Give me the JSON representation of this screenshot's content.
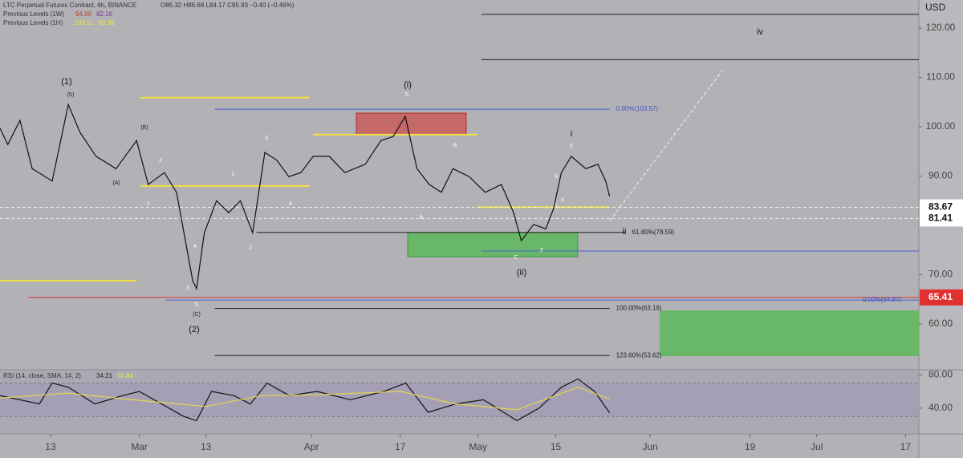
{
  "chart_data": [
    {
      "type": "line",
      "title": "LTC Perpetual Futures Contract, 6h, BINANCE",
      "ohlc": "O86.32 H86.68 L84.17 C85.93 −0.40 (−0.46%)",
      "previous_levels": [
        {
          "name": "Previous Levels (1W)",
          "values": [
            94.96,
            82.16
          ],
          "colors": [
            "#c0392b",
            "#7b2fa8"
          ]
        },
        {
          "name": "Previous Levels (1H)",
          "values": [
            103.51,
            83.86
          ],
          "colors": [
            "#f0e040",
            "#f0e040"
          ]
        }
      ],
      "y_axis_label": "USD",
      "x": [
        2.9,
        4.3,
        6.5,
        8.7,
        12.3,
        15.2,
        17.3,
        20.2,
        23.8,
        27.5,
        29.6,
        32.5,
        34.7,
        37.6,
        38.3,
        39.7,
        41.9,
        44.1,
        46.2,
        48.4,
        50.6,
        52.8,
        54.9,
        57.1,
        59.3,
        62.2,
        65.0,
        68.7,
        71.5,
        73.7,
        75.9,
        78.0,
        80.2,
        82.4,
        84.5,
        87.4,
        90.3,
        93.2,
        95.4,
        96.8,
        99.0,
        101.2,
        102.6,
        104.0,
        105.8,
        108.4,
        110.6,
        112.0,
        112.7
      ],
      "series": [
        {
          "color": "#111111",
          "values": [
            99.7,
            96.4,
            101.3,
            91.5,
            89,
            104.5,
            98.9,
            94,
            91.5,
            97.2,
            88.3,
            90.7,
            86.7,
            68.8,
            67.2,
            78.5,
            85,
            82.6,
            85,
            78.5,
            94.8,
            93.2,
            89.9,
            90.7,
            94,
            94,
            90.7,
            92.4,
            97.2,
            98,
            102.1,
            91.5,
            88.3,
            86.7,
            91.5,
            89.9,
            86.7,
            88.3,
            82.6,
            76.9,
            80.2,
            79.3,
            83.4,
            90.7,
            94,
            91.5,
            92.4,
            89,
            85.93
          ]
        }
      ],
      "xlim": [
        2.9,
        168.4
      ],
      "ylim": [
        50.9,
        125.7
      ],
      "yticks": [
        {
          "value": 60,
          "label": "60.00"
        },
        {
          "value": 70,
          "label": "70.00"
        },
        {
          "value": 90,
          "label": "90.00"
        },
        {
          "value": 100,
          "label": "100.00"
        },
        {
          "value": 110,
          "label": "110.00"
        },
        {
          "value": 120,
          "label": "120.00"
        }
      ],
      "grid": false,
      "levels": [
        {
          "value": 122.8,
          "color": "#222222",
          "from": 89.6,
          "to": 168.4
        },
        {
          "value": 113.6,
          "color": "#222222",
          "from": 89.6,
          "to": 168.4
        },
        {
          "value": 103.57,
          "color": "#4a5fd0",
          "from": 41.6,
          "to": 112.7,
          "label": "0.00%(103.57)"
        },
        {
          "value": 105.9,
          "color": "#f0e040",
          "from": 28.2,
          "to": 58.6
        },
        {
          "value": 98.4,
          "color": "#f0e040",
          "from": 59.3,
          "to": 88.9
        },
        {
          "value": 88,
          "color": "#f0e040",
          "from": 28.2,
          "to": 58.6
        },
        {
          "value": 68.8,
          "color": "#f0e040",
          "from": 2.9,
          "to": 27.5
        },
        {
          "value": 83.7,
          "color": "#f0e040",
          "from": 88.9,
          "to": 112.7
        },
        {
          "value": 83.67,
          "color": "#eeeeee",
          "from": 2.9,
          "to": 168.4,
          "dashed": true,
          "axis_label": true
        },
        {
          "value": 81.41,
          "color": "#eeeeee",
          "from": 2.9,
          "to": 168.4,
          "dashed": true,
          "axis_label": true
        },
        {
          "value": 78.59,
          "color": "#222222",
          "from": 49.1,
          "to": 115.6,
          "label": "61.80%(78.59)"
        },
        {
          "value": 74.8,
          "color": "#4a5fd0",
          "from": 89.6,
          "to": 168.4
        },
        {
          "value": 65.41,
          "color": "#e03030",
          "from": 8,
          "to": 168.4,
          "axis_label": true
        },
        {
          "value": 64.87,
          "color": "#4a5fd0",
          "from": 32.8,
          "to": 168.4,
          "label": "0.00%(64.87)"
        },
        {
          "value": 63.16,
          "color": "#222222",
          "from": 41.6,
          "to": 112.7,
          "label": "100.00%(63.16)"
        },
        {
          "value": 53.62,
          "color": "#222222",
          "from": 41.6,
          "to": 112.7,
          "label": "123.60%(53.62)"
        }
      ],
      "wave_labels": [
        "(1)",
        "(2)",
        "(i)",
        "(ii)",
        "iv",
        "i",
        "ii",
        "(5)",
        "(B)",
        "(A)",
        "(C)",
        "5",
        "5",
        "5",
        "3",
        "4",
        "1",
        "2",
        "2",
        "4",
        "3",
        "1",
        "B",
        "A",
        "C",
        "1",
        "2",
        "3",
        "4"
      ]
    },
    {
      "type": "line",
      "title": "RSI (14, close, SMA, 14, 2)",
      "series": [
        {
          "color": "#111111",
          "x": [
            2.9,
            6.5,
            10,
            12.3,
            15.2,
            20,
            25,
            28,
            32,
            36,
            38.3,
            41,
            45,
            48,
            51,
            55,
            60,
            66,
            72,
            76,
            80,
            85,
            90,
            96,
            100,
            104,
            107,
            110,
            112.7
          ],
          "values": [
            55,
            50,
            45,
            70,
            65,
            45,
            55,
            60,
            45,
            30,
            25,
            60,
            55,
            45,
            70,
            55,
            60,
            50,
            60,
            70,
            35,
            45,
            50,
            25,
            40,
            65,
            75,
            60,
            34.21
          ]
        },
        {
          "color": "#e8d44d",
          "x": [
            2.9,
            15,
            30,
            40,
            50,
            60,
            75,
            85,
            96,
            107,
            112.7
          ],
          "values": [
            52,
            58,
            48,
            42,
            55,
            56,
            60,
            45,
            38,
            65,
            50.84
          ]
        }
      ],
      "xlim": [
        2.9,
        168.4
      ],
      "ylim": [
        10,
        85
      ],
      "band": [
        30,
        70
      ],
      "yticks": [
        {
          "value": 40,
          "label": "40.00"
        },
        {
          "value": 80,
          "label": "80.00"
        }
      ],
      "xticks": [
        {
          "value": 12,
          "label": "13"
        },
        {
          "value": 28,
          "label": "Mar"
        },
        {
          "value": 40,
          "label": "13"
        },
        {
          "value": 59,
          "label": "Apr"
        },
        {
          "value": 75,
          "label": "17"
        },
        {
          "value": 89,
          "label": "May"
        },
        {
          "value": 103,
          "label": "15"
        },
        {
          "value": 120,
          "label": "Jun"
        },
        {
          "value": 138,
          "label": "19"
        },
        {
          "value": 150,
          "label": "Jul"
        },
        {
          "value": 166,
          "label": "17"
        }
      ]
    }
  ]
}
